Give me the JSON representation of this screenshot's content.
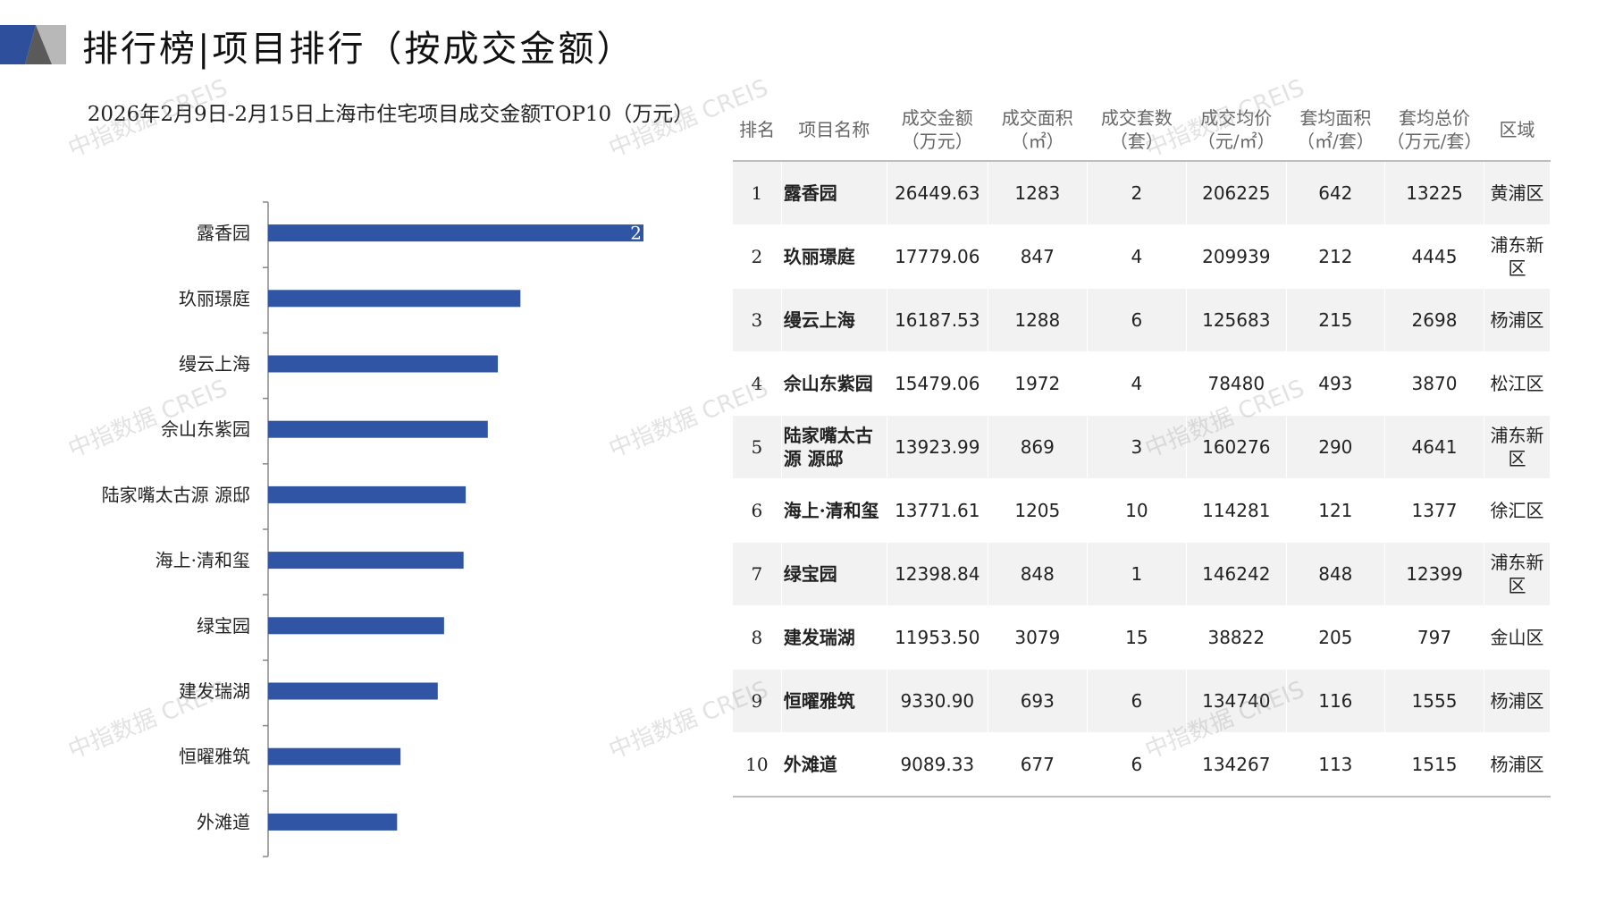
{
  "header": {
    "title": "排行榜|项目排行（按成交金额）"
  },
  "chart_data": {
    "type": "bar",
    "orientation": "horizontal",
    "title": "2026年2月9日-2月15日上海市住宅项目成交金额TOP10（万元）",
    "categories": [
      "露香园",
      "玖丽璟庭",
      "缦云上海",
      "佘山东紫园",
      "陆家嘴太古源 源邸",
      "海上·清和玺",
      "绿宝园",
      "建发瑞湖",
      "恒曜雅筑",
      "外滩道"
    ],
    "values": [
      26449.63,
      17779.06,
      16187.53,
      15479.06,
      13923.99,
      13771.61,
      12398.84,
      11953.5,
      9330.9,
      9089.33
    ],
    "data_labels": [
      "2"
    ],
    "xlim": [
      0,
      26449.63
    ],
    "bar_color": "#2f55a4"
  },
  "table": {
    "headers": [
      "排名",
      "项目名称",
      "成交金额\n（万元）",
      "成交面积\n（㎡）",
      "成交套数\n（套）",
      "成交均价\n（元/㎡）",
      "套均面积\n（㎡/套）",
      "套均总价\n（万元/套）",
      "区域"
    ],
    "rows": [
      [
        "1",
        "露香园",
        "26449.63",
        "1283",
        "2",
        "206225",
        "642",
        "13225",
        "黄浦区"
      ],
      [
        "2",
        "玖丽璟庭",
        "17779.06",
        "847",
        "4",
        "209939",
        "212",
        "4445",
        "浦东新区"
      ],
      [
        "3",
        "缦云上海",
        "16187.53",
        "1288",
        "6",
        "125683",
        "215",
        "2698",
        "杨浦区"
      ],
      [
        "4",
        "佘山东紫园",
        "15479.06",
        "1972",
        "4",
        "78480",
        "493",
        "3870",
        "松江区"
      ],
      [
        "5",
        "陆家嘴太古源 源邸",
        "13923.99",
        "869",
        "3",
        "160276",
        "290",
        "4641",
        "浦东新区"
      ],
      [
        "6",
        "海上·清和玺",
        "13771.61",
        "1205",
        "10",
        "114281",
        "121",
        "1377",
        "徐汇区"
      ],
      [
        "7",
        "绿宝园",
        "12398.84",
        "848",
        "1",
        "146242",
        "848",
        "12399",
        "浦东新区"
      ],
      [
        "8",
        "建发瑞湖",
        "11953.50",
        "3079",
        "15",
        "38822",
        "205",
        "797",
        "金山区"
      ],
      [
        "9",
        "恒曜雅筑",
        "9330.90",
        "693",
        "6",
        "134740",
        "116",
        "1555",
        "杨浦区"
      ],
      [
        "10",
        "外滩道",
        "9089.33",
        "677",
        "6",
        "134267",
        "113",
        "1515",
        "杨浦区"
      ]
    ]
  },
  "watermark": {
    "text": "中指数据 CREIS"
  },
  "colors": {
    "accent_dark": "#2d4f9c",
    "accent_gray": "#b8b8b8"
  }
}
